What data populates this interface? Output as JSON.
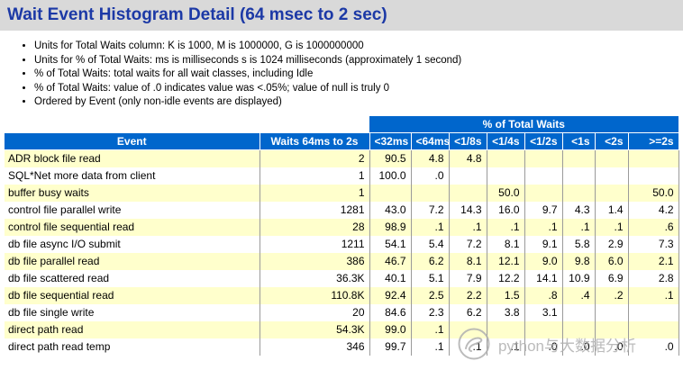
{
  "title": "Wait Event Histogram Detail (64 msec to 2 sec)",
  "notes": [
    "Units for Total Waits column: K is 1000, M is 1000000, G is 1000000000",
    "Units for % of Total Waits: ms is milliseconds s is 1024 milliseconds (approximately 1 second)",
    "% of Total Waits: total waits for all wait classes, including Idle",
    "% of Total Waits: value of .0 indicates value was <.05%; value of null is truly 0",
    "Ordered by Event (only non-idle events are displayed)"
  ],
  "table": {
    "span_header": "% of Total Waits",
    "columns": [
      "Event",
      "Waits 64ms to 2s",
      "<32ms",
      "<64ms",
      "<1/8s",
      "<1/4s",
      "<1/2s",
      "<1s",
      "<2s",
      ">=2s"
    ],
    "rows": [
      {
        "event": "ADR block file read",
        "waits": "2",
        "values": [
          "90.5",
          "4.8",
          "4.8",
          "",
          "",
          "",
          "",
          ""
        ]
      },
      {
        "event": "SQL*Net more data from client",
        "waits": "1",
        "values": [
          "100.0",
          ".0",
          "",
          "",
          "",
          "",
          "",
          ""
        ]
      },
      {
        "event": "buffer busy waits",
        "waits": "1",
        "values": [
          "",
          "",
          "",
          "50.0",
          "",
          "",
          "",
          "50.0"
        ]
      },
      {
        "event": "control file parallel write",
        "waits": "1281",
        "values": [
          "43.0",
          "7.2",
          "14.3",
          "16.0",
          "9.7",
          "4.3",
          "1.4",
          "4.2"
        ]
      },
      {
        "event": "control file sequential read",
        "waits": "28",
        "values": [
          "98.9",
          ".1",
          ".1",
          ".1",
          ".1",
          ".1",
          ".1",
          ".6"
        ]
      },
      {
        "event": "db file async I/O submit",
        "waits": "1211",
        "values": [
          "54.1",
          "5.4",
          "7.2",
          "8.1",
          "9.1",
          "5.8",
          "2.9",
          "7.3"
        ]
      },
      {
        "event": "db file parallel read",
        "waits": "386",
        "values": [
          "46.7",
          "6.2",
          "8.1",
          "12.1",
          "9.0",
          "9.8",
          "6.0",
          "2.1"
        ]
      },
      {
        "event": "db file scattered read",
        "waits": "36.3K",
        "values": [
          "40.1",
          "5.1",
          "7.9",
          "12.2",
          "14.1",
          "10.9",
          "6.9",
          "2.8"
        ]
      },
      {
        "event": "db file sequential read",
        "waits": "110.8K",
        "values": [
          "92.4",
          "2.5",
          "2.2",
          "1.5",
          ".8",
          ".4",
          ".2",
          ".1"
        ]
      },
      {
        "event": "db file single write",
        "waits": "20",
        "values": [
          "84.6",
          "2.3",
          "6.2",
          "3.8",
          "3.1",
          "",
          "",
          ""
        ]
      },
      {
        "event": "direct path read",
        "waits": "54.3K",
        "values": [
          "99.0",
          ".1",
          "",
          "",
          "",
          "",
          "",
          ""
        ]
      },
      {
        "event": "direct path read temp",
        "waits": "346",
        "values": [
          "99.7",
          ".1",
          ".1",
          ".1",
          ".0",
          ".0",
          ".0",
          ".0"
        ]
      }
    ]
  },
  "watermark": {
    "text": "python与大数据分析"
  },
  "colors": {
    "title_text": "#1c39a6",
    "title_bar_bg": "#d9d9d9",
    "header_bg": "#0066cc",
    "header_text": "#ffffff",
    "row_alt_bg": "#ffffcc",
    "cell_border": "#9a9a9a",
    "watermark": "#b0b0b0"
  }
}
